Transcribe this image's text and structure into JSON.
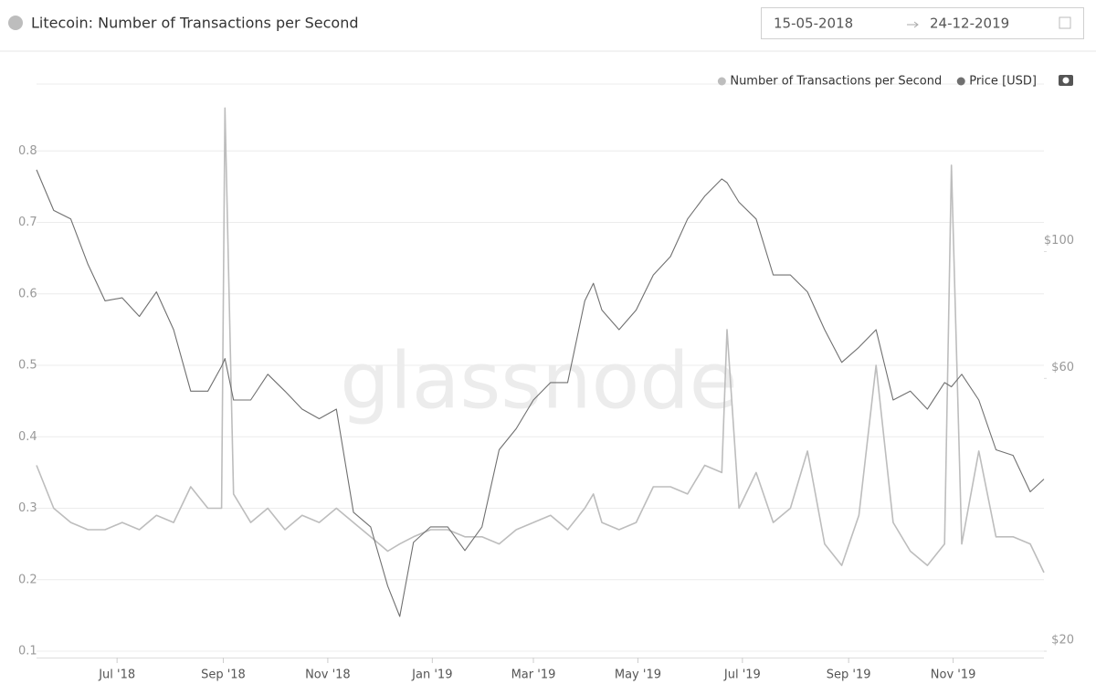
{
  "chart_data": {
    "type": "line",
    "title": "Litecoin: Number of Transactions per Second",
    "watermark": "glassnode",
    "xlim": [
      "15-05-2018",
      "24-12-2019"
    ],
    "xticks": [
      {
        "value": "01-07-2018",
        "label": "Jul '18"
      },
      {
        "value": "01-09-2018",
        "label": "Sep '18"
      },
      {
        "value": "01-11-2018",
        "label": "Nov '18"
      },
      {
        "value": "01-01-2019",
        "label": "Jan '19"
      },
      {
        "value": "01-03-2019",
        "label": "Mar '19"
      },
      {
        "value": "01-05-2019",
        "label": "May '19"
      },
      {
        "value": "01-07-2019",
        "label": "Jul '19"
      },
      {
        "value": "01-09-2019",
        "label": "Sep '19"
      },
      {
        "value": "01-11-2019",
        "label": "Nov '19"
      }
    ],
    "ylim": [
      0.1,
      0.9
    ],
    "yticks": [
      0.1,
      0.2,
      0.3,
      0.4,
      0.5,
      0.6,
      0.7,
      0.8
    ],
    "y2lim": [
      20,
      200
    ],
    "y2log": true,
    "y2ticks": [
      {
        "value": 20,
        "label": "$20"
      },
      {
        "value": 60,
        "label": "$60"
      },
      {
        "value": 100,
        "label": "$100"
      }
    ],
    "grid": true,
    "legend": "top-right",
    "x": [
      "15-05-2018",
      "25-05-2018",
      "04-06-2018",
      "14-06-2018",
      "24-06-2018",
      "04-07-2018",
      "14-07-2018",
      "24-07-2018",
      "03-08-2018",
      "13-08-2018",
      "23-08-2018",
      "31-08-2018",
      "02-09-2018",
      "07-09-2018",
      "17-09-2018",
      "27-09-2018",
      "07-10-2018",
      "17-10-2018",
      "27-10-2018",
      "06-11-2018",
      "16-11-2018",
      "26-11-2018",
      "06-12-2018",
      "13-12-2018",
      "21-12-2018",
      "31-12-2018",
      "10-01-2019",
      "20-01-2019",
      "30-01-2019",
      "09-02-2019",
      "19-02-2019",
      "01-03-2019",
      "11-03-2019",
      "21-03-2019",
      "31-03-2019",
      "05-04-2019",
      "10-04-2019",
      "20-04-2019",
      "30-04-2019",
      "10-05-2019",
      "20-05-2019",
      "30-05-2019",
      "09-06-2019",
      "19-06-2019",
      "22-06-2019",
      "29-06-2019",
      "09-07-2019",
      "19-07-2019",
      "29-07-2019",
      "08-08-2019",
      "18-08-2019",
      "28-08-2019",
      "07-09-2019",
      "17-09-2019",
      "27-09-2019",
      "07-10-2019",
      "17-10-2019",
      "27-10-2019",
      "31-10-2019",
      "06-11-2019",
      "16-11-2019",
      "26-11-2019",
      "06-12-2019",
      "16-12-2019",
      "24-12-2019"
    ],
    "series": [
      {
        "name": "Number of Transactions per Second",
        "color": "#bdbdbd",
        "values": [
          0.36,
          0.3,
          0.28,
          0.27,
          0.27,
          0.28,
          0.27,
          0.29,
          0.28,
          0.33,
          0.3,
          0.3,
          0.86,
          0.32,
          0.28,
          0.3,
          0.27,
          0.29,
          0.28,
          0.3,
          0.28,
          0.26,
          0.24,
          0.25,
          0.26,
          0.27,
          0.27,
          0.26,
          0.26,
          0.25,
          0.27,
          0.28,
          0.29,
          0.27,
          0.3,
          0.32,
          0.28,
          0.27,
          0.28,
          0.33,
          0.33,
          0.32,
          0.36,
          0.35,
          0.55,
          0.3,
          0.35,
          0.28,
          0.3,
          0.38,
          0.25,
          0.22,
          0.29,
          0.5,
          0.28,
          0.24,
          0.22,
          0.25,
          0.78,
          0.25,
          0.38,
          0.26,
          0.26,
          0.25,
          0.21
        ]
      },
      {
        "name": "Price [USD]",
        "color": "#707070",
        "axis": "y2",
        "values": [
          139,
          118,
          114,
          95,
          82,
          83,
          77,
          85,
          73,
          57,
          57,
          63,
          65,
          55,
          55,
          61,
          57,
          53,
          51,
          53,
          35,
          33,
          26,
          23,
          31,
          33,
          33,
          30,
          33,
          45,
          49,
          55,
          59,
          59,
          82,
          88,
          79,
          73,
          79,
          91,
          98,
          114,
          125,
          134,
          132,
          122,
          114,
          91,
          91,
          85,
          73,
          64,
          68,
          73,
          55,
          57,
          53,
          59,
          58,
          61,
          55,
          45,
          44,
          38,
          40
        ]
      }
    ]
  }
}
